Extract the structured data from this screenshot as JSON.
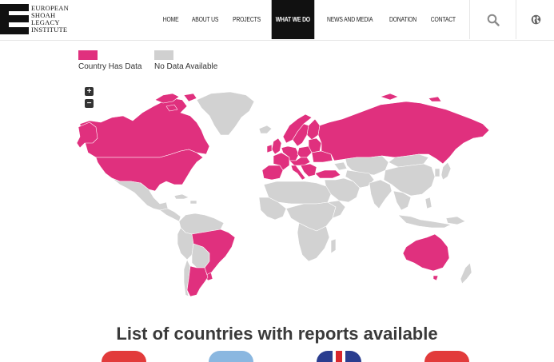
{
  "header": {
    "logo": {
      "line1": "EUROPEAN",
      "line2": "SHOAH",
      "line3": "LEGACY",
      "line4": "INSTITUTE"
    },
    "nav": [
      {
        "label": "HOME"
      },
      {
        "label": "ABOUT US"
      },
      {
        "label": "PROJECTS"
      },
      {
        "label": "WHAT WE DO",
        "active": true
      },
      {
        "label": "NEWS AND MEDIA"
      },
      {
        "label": "DONATION"
      },
      {
        "label": "CONTACT"
      }
    ],
    "search_icon": "search-icon",
    "globe_icon": "globe-icon"
  },
  "legend": {
    "has_data": {
      "label": "Country Has Data",
      "color": "#e0307e"
    },
    "no_data": {
      "label": "No Data Available",
      "color": "#d0d0d0"
    }
  },
  "zoom": {
    "in_label": "+",
    "out_label": "−"
  },
  "section_title": "List of countries with reports available",
  "colors": {
    "accent": "#e0307e",
    "inactive": "#d2d2d2"
  }
}
